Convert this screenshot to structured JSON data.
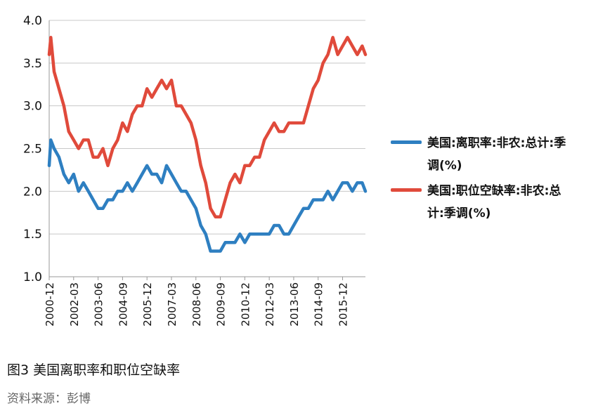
{
  "chart_data": {
    "type": "line",
    "title": "",
    "xlabel": "",
    "ylabel": "",
    "ylim": [
      1.0,
      4.0
    ],
    "yticks": [
      "1.0",
      "1.5",
      "2.0",
      "2.5",
      "3.0",
      "3.5",
      "4.0"
    ],
    "xticks": [
      "2000-12",
      "2002-03",
      "2003-06",
      "2004-09",
      "2005-12",
      "2007-03",
      "2008-06",
      "2009-09",
      "2010-12",
      "2012-03",
      "2013-06",
      "2014-09",
      "2015-12"
    ],
    "grid": "horizontal",
    "legend_position": "right",
    "series": [
      {
        "name": "美国:离职率:非农:总计:季调(%)",
        "color": "#2e7fc1",
        "points": [
          [
            "2000-12",
            2.3
          ],
          [
            "2001-01",
            2.6
          ],
          [
            "2001-03",
            2.5
          ],
          [
            "2001-06",
            2.4
          ],
          [
            "2001-09",
            2.2
          ],
          [
            "2001-12",
            2.1
          ],
          [
            "2002-03",
            2.2
          ],
          [
            "2002-06",
            2.0
          ],
          [
            "2002-09",
            2.1
          ],
          [
            "2002-12",
            2.0
          ],
          [
            "2003-03",
            1.9
          ],
          [
            "2003-06",
            1.8
          ],
          [
            "2003-09",
            1.8
          ],
          [
            "2003-12",
            1.9
          ],
          [
            "2004-03",
            1.9
          ],
          [
            "2004-06",
            2.0
          ],
          [
            "2004-09",
            2.0
          ],
          [
            "2004-12",
            2.1
          ],
          [
            "2005-03",
            2.0
          ],
          [
            "2005-06",
            2.1
          ],
          [
            "2005-09",
            2.2
          ],
          [
            "2005-12",
            2.3
          ],
          [
            "2006-03",
            2.2
          ],
          [
            "2006-06",
            2.2
          ],
          [
            "2006-09",
            2.1
          ],
          [
            "2006-12",
            2.3
          ],
          [
            "2007-03",
            2.2
          ],
          [
            "2007-06",
            2.1
          ],
          [
            "2007-09",
            2.0
          ],
          [
            "2007-12",
            2.0
          ],
          [
            "2008-03",
            1.9
          ],
          [
            "2008-06",
            1.8
          ],
          [
            "2008-09",
            1.6
          ],
          [
            "2008-12",
            1.5
          ],
          [
            "2009-03",
            1.3
          ],
          [
            "2009-06",
            1.3
          ],
          [
            "2009-09",
            1.3
          ],
          [
            "2009-12",
            1.4
          ],
          [
            "2010-03",
            1.4
          ],
          [
            "2010-06",
            1.4
          ],
          [
            "2010-09",
            1.5
          ],
          [
            "2010-12",
            1.4
          ],
          [
            "2011-03",
            1.5
          ],
          [
            "2011-06",
            1.5
          ],
          [
            "2011-09",
            1.5
          ],
          [
            "2011-12",
            1.5
          ],
          [
            "2012-03",
            1.5
          ],
          [
            "2012-06",
            1.6
          ],
          [
            "2012-09",
            1.6
          ],
          [
            "2012-12",
            1.5
          ],
          [
            "2013-03",
            1.5
          ],
          [
            "2013-06",
            1.6
          ],
          [
            "2013-09",
            1.7
          ],
          [
            "2013-12",
            1.8
          ],
          [
            "2014-03",
            1.8
          ],
          [
            "2014-06",
            1.9
          ],
          [
            "2014-09",
            1.9
          ],
          [
            "2014-12",
            1.9
          ],
          [
            "2015-03",
            2.0
          ],
          [
            "2015-06",
            1.9
          ],
          [
            "2015-09",
            2.0
          ],
          [
            "2015-12",
            2.1
          ],
          [
            "2016-03",
            2.1
          ],
          [
            "2016-06",
            2.0
          ],
          [
            "2016-09",
            2.1
          ],
          [
            "2016-12",
            2.1
          ],
          [
            "2017-02",
            2.0
          ]
        ]
      },
      {
        "name": "美国:职位空缺率:非农:总计:季调(%)",
        "color": "#e04a3b",
        "points": [
          [
            "2000-12",
            3.6
          ],
          [
            "2001-01",
            3.8
          ],
          [
            "2001-03",
            3.4
          ],
          [
            "2001-06",
            3.2
          ],
          [
            "2001-09",
            3.0
          ],
          [
            "2001-12",
            2.7
          ],
          [
            "2002-03",
            2.6
          ],
          [
            "2002-06",
            2.5
          ],
          [
            "2002-09",
            2.6
          ],
          [
            "2002-12",
            2.6
          ],
          [
            "2003-03",
            2.4
          ],
          [
            "2003-06",
            2.4
          ],
          [
            "2003-09",
            2.5
          ],
          [
            "2003-12",
            2.3
          ],
          [
            "2004-03",
            2.5
          ],
          [
            "2004-06",
            2.6
          ],
          [
            "2004-09",
            2.8
          ],
          [
            "2004-12",
            2.7
          ],
          [
            "2005-03",
            2.9
          ],
          [
            "2005-06",
            3.0
          ],
          [
            "2005-09",
            3.0
          ],
          [
            "2005-12",
            3.2
          ],
          [
            "2006-03",
            3.1
          ],
          [
            "2006-06",
            3.2
          ],
          [
            "2006-09",
            3.3
          ],
          [
            "2006-12",
            3.2
          ],
          [
            "2007-03",
            3.3
          ],
          [
            "2007-06",
            3.0
          ],
          [
            "2007-09",
            3.0
          ],
          [
            "2007-12",
            2.9
          ],
          [
            "2008-03",
            2.8
          ],
          [
            "2008-06",
            2.6
          ],
          [
            "2008-09",
            2.3
          ],
          [
            "2008-12",
            2.1
          ],
          [
            "2009-03",
            1.8
          ],
          [
            "2009-06",
            1.7
          ],
          [
            "2009-09",
            1.7
          ],
          [
            "2009-12",
            1.9
          ],
          [
            "2010-03",
            2.1
          ],
          [
            "2010-06",
            2.2
          ],
          [
            "2010-09",
            2.1
          ],
          [
            "2010-12",
            2.3
          ],
          [
            "2011-03",
            2.3
          ],
          [
            "2011-06",
            2.4
          ],
          [
            "2011-09",
            2.4
          ],
          [
            "2011-12",
            2.6
          ],
          [
            "2012-03",
            2.7
          ],
          [
            "2012-06",
            2.8
          ],
          [
            "2012-09",
            2.7
          ],
          [
            "2012-12",
            2.7
          ],
          [
            "2013-03",
            2.8
          ],
          [
            "2013-06",
            2.8
          ],
          [
            "2013-09",
            2.8
          ],
          [
            "2013-12",
            2.8
          ],
          [
            "2014-03",
            3.0
          ],
          [
            "2014-06",
            3.2
          ],
          [
            "2014-09",
            3.3
          ],
          [
            "2014-12",
            3.5
          ],
          [
            "2015-03",
            3.6
          ],
          [
            "2015-06",
            3.8
          ],
          [
            "2015-09",
            3.6
          ],
          [
            "2015-12",
            3.7
          ],
          [
            "2016-03",
            3.8
          ],
          [
            "2016-06",
            3.7
          ],
          [
            "2016-09",
            3.6
          ],
          [
            "2016-12",
            3.7
          ],
          [
            "2017-02",
            3.6
          ]
        ]
      }
    ]
  },
  "caption": "图3  美国离职率和职位空缺率",
  "source": "资料来源：彭博"
}
